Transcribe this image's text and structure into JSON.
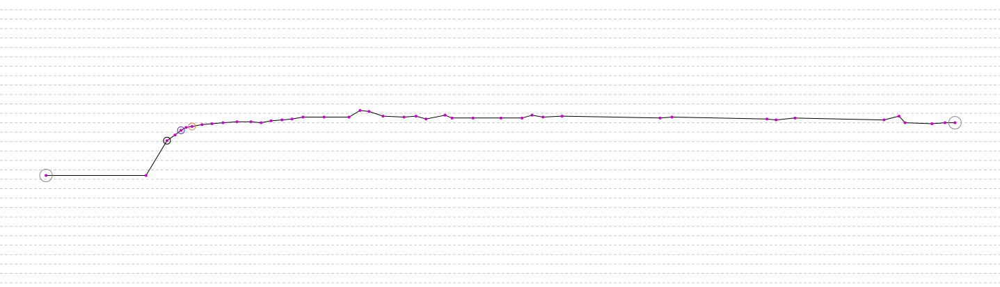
{
  "chart_data": {
    "type": "line",
    "xlim": [
      0,
      100
    ],
    "ylim": [
      0,
      29
    ],
    "yticks": [
      0,
      1,
      2,
      3,
      4,
      5,
      6,
      7,
      8,
      9,
      10,
      11,
      12,
      13,
      14,
      15,
      16,
      17,
      18,
      19,
      20,
      21,
      22,
      23,
      24,
      25,
      26,
      27,
      28,
      29
    ],
    "grid": true,
    "series": [
      {
        "color": "#000000",
        "marker_color": "#cc00cc",
        "x": [
          4.6,
          14.6,
          16.7,
          17.5,
          18.1,
          18.6,
          19.2,
          20.2,
          21.2,
          22.3,
          23.7,
          25.1,
          26.1,
          27.1,
          28.2,
          29.2,
          30.3,
          32.4,
          34.9,
          36.0,
          36.9,
          38.3,
          40.4,
          41.6,
          42.6,
          44.5,
          45.2,
          47.3,
          50.1,
          52.2,
          53.2,
          54.3,
          56.2,
          66.0,
          67.2,
          76.7,
          77.6,
          79.5,
          88.4,
          89.9,
          90.5,
          93.2,
          94.5,
          95.5
        ],
        "values": [
          11.4,
          11.4,
          15.1,
          15.7,
          16.2,
          16.5,
          16.6,
          16.8,
          16.9,
          17.0,
          17.1,
          17.1,
          17.0,
          17.2,
          17.3,
          17.4,
          17.6,
          17.6,
          17.6,
          18.3,
          18.2,
          17.7,
          17.6,
          17.7,
          17.4,
          17.8,
          17.5,
          17.5,
          17.5,
          17.5,
          17.8,
          17.6,
          17.7,
          17.5,
          17.6,
          17.4,
          17.3,
          17.5,
          17.3,
          17.7,
          17.0,
          16.9,
          17.0,
          17.0
        ]
      }
    ]
  }
}
